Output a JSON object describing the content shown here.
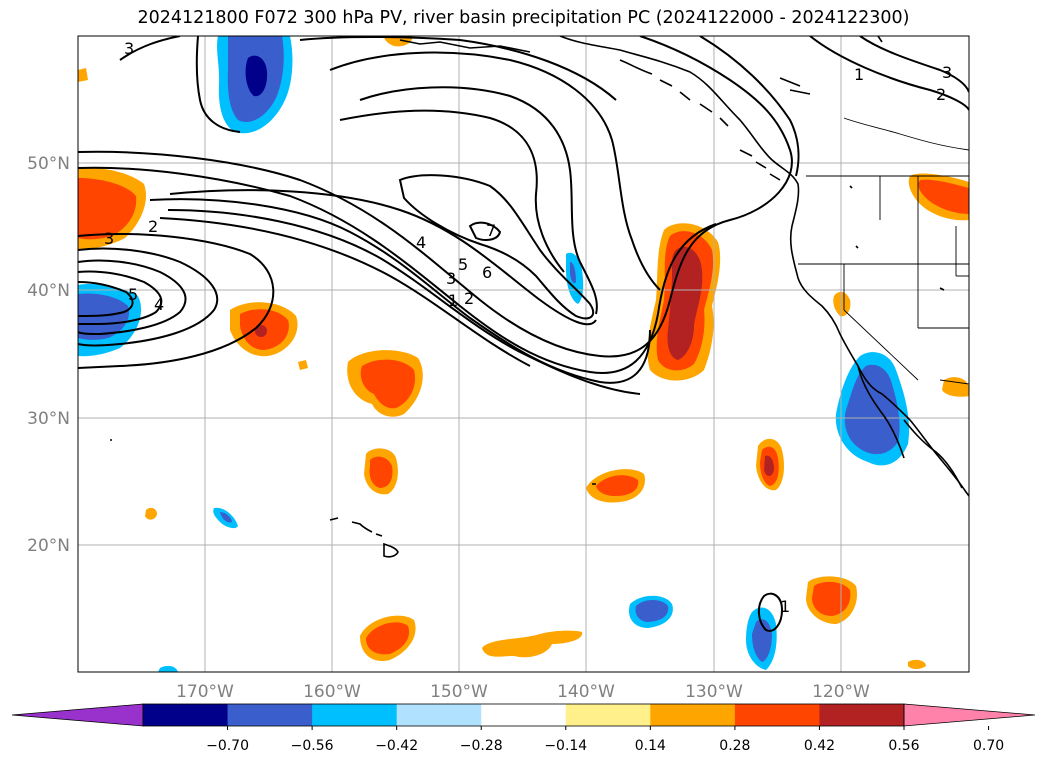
{
  "title": "2024121800 F072 300 hPa PV, river basin precipitation PC (2024122000 - 2024122300)",
  "lon_labels": [
    "170°W",
    "160°W",
    "150°W",
    "140°W",
    "130°W",
    "120°W"
  ],
  "lat_labels": [
    "50°N",
    "40°N",
    "30°N",
    "20°N"
  ],
  "colorbar": {
    "tick_labels": [
      "−0.70",
      "−0.56",
      "−0.42",
      "−0.28",
      "−0.14",
      "0.14",
      "0.28",
      "0.42",
      "0.56",
      "0.70"
    ],
    "colors": [
      "#9932cc",
      "#00008b",
      "#3a5fcd",
      "#00bfff",
      "#b0e2ff",
      "#ffffff",
      "#fff08c",
      "#ffa500",
      "#ff4500",
      "#b22222",
      "#ff82ab"
    ]
  },
  "contour_labels": [
    "3",
    "1",
    "3",
    "2",
    "2",
    "3",
    "5",
    "4",
    "4",
    "5",
    "3",
    "1",
    "2",
    "6",
    "7",
    "1"
  ],
  "map_colors": {
    "pv_contour": "#000000",
    "coastline": "#000000",
    "gridline": "#b0b0b0"
  }
}
